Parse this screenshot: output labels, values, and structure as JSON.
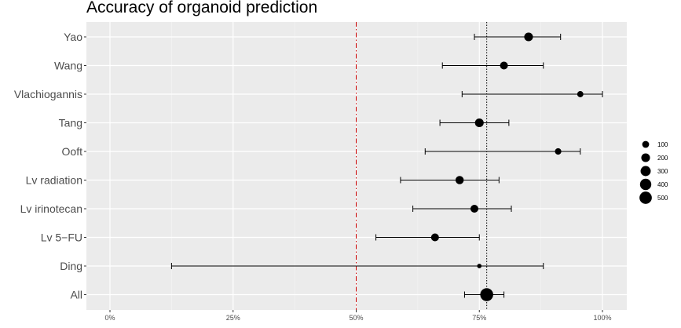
{
  "chart_data": {
    "type": "scatter",
    "title": "Accuracy of organoid prediction",
    "xlim": [
      -0.05,
      1.05
    ],
    "x_ticks": [
      {
        "value": 0,
        "label": "0%"
      },
      {
        "value": 0.25,
        "label": "25%"
      },
      {
        "value": 0.5,
        "label": "50%"
      },
      {
        "value": 0.75,
        "label": "75%"
      },
      {
        "value": 1.0,
        "label": "100%"
      }
    ],
    "grid": true,
    "reference_lines": [
      {
        "x": 0.5,
        "style": "dashdot",
        "color": "#cc0000"
      },
      {
        "x": 0.765,
        "style": "dotted",
        "color": "#000000"
      }
    ],
    "studies": [
      {
        "name": "Yao",
        "estimate": 0.85,
        "lower": 0.74,
        "upper": 0.915,
        "n": 200
      },
      {
        "name": "Wang",
        "estimate": 0.8,
        "lower": 0.675,
        "upper": 0.88,
        "n": 150
      },
      {
        "name": "Vlachiogannis",
        "estimate": 0.955,
        "lower": 0.715,
        "upper": 1.0,
        "n": 70
      },
      {
        "name": "Tang",
        "estimate": 0.75,
        "lower": 0.67,
        "upper": 0.81,
        "n": 200
      },
      {
        "name": "Ooft",
        "estimate": 0.91,
        "lower": 0.64,
        "upper": 0.955,
        "n": 80
      },
      {
        "name": "Lv radiation",
        "estimate": 0.71,
        "lower": 0.59,
        "upper": 0.79,
        "n": 170
      },
      {
        "name": "Lv irinotecan",
        "estimate": 0.74,
        "lower": 0.615,
        "upper": 0.815,
        "n": 150
      },
      {
        "name": "Lv 5−FU",
        "estimate": 0.66,
        "lower": 0.54,
        "upper": 0.75,
        "n": 150
      },
      {
        "name": "Ding",
        "estimate": 0.75,
        "lower": 0.125,
        "upper": 0.88,
        "n": 20
      },
      {
        "name": "All",
        "estimate": 0.765,
        "lower": 0.72,
        "upper": 0.8,
        "n": 560
      }
    ],
    "legend": {
      "position": "right",
      "entries": [
        {
          "label": "100",
          "size": 100
        },
        {
          "label": "200",
          "size": 200
        },
        {
          "label": "300",
          "size": 300
        },
        {
          "label": "400",
          "size": 400
        },
        {
          "label": "500",
          "size": 500
        }
      ]
    }
  }
}
